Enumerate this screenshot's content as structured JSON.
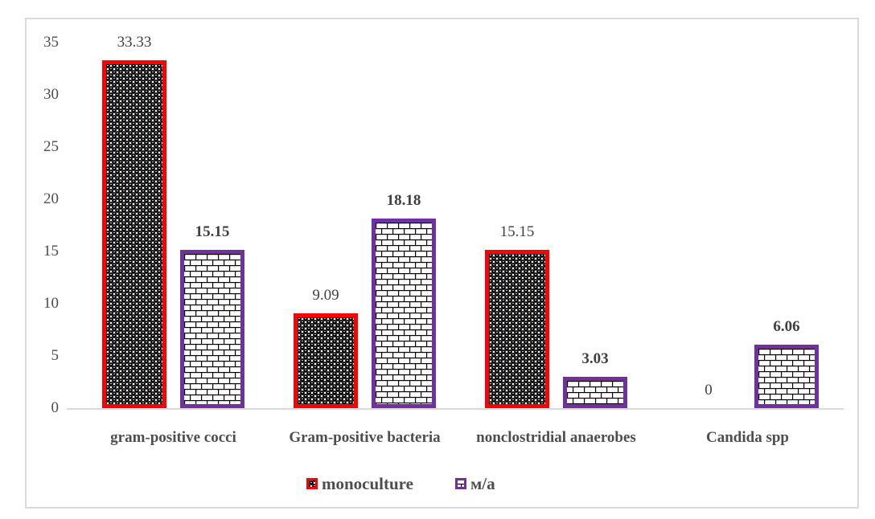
{
  "chart_data": {
    "type": "bar",
    "title": "",
    "xlabel": "",
    "ylabel": "",
    "categories": [
      "gram-positive cocci",
      "Gram-positive bacteria",
      "nonclostridial anaerobes",
      "Candida spp"
    ],
    "series": [
      {
        "id": "monoculture",
        "name": "monoculture",
        "color": "#ff0000",
        "pattern": "spheres",
        "values": [
          33.33,
          9.09,
          15.15,
          0
        ],
        "labels": [
          "33.33",
          "9.09",
          "15.15",
          "0"
        ],
        "label_bold": false
      },
      {
        "id": "m-a",
        "name": "м/a",
        "color": "#7030a0",
        "pattern": "bricks",
        "values": [
          15.15,
          18.18,
          3.03,
          6.06
        ],
        "labels": [
          "15.15",
          "18.18",
          "3.03",
          "6.06"
        ],
        "label_bold": true
      }
    ],
    "ylim": [
      0,
      35
    ],
    "yticks": [
      0,
      5,
      10,
      15,
      20,
      25,
      30,
      35
    ],
    "grid": false,
    "legend_position": "bottom"
  },
  "colors": {
    "text_data_label": "#3f3f3f",
    "text_axis": "#4d4d4d",
    "axis_line": "#d9d9d9",
    "frame_border": "#d9d9d9",
    "background": "#ffffff",
    "pattern_ink": "#000000",
    "series_monoculture": "#ff0000",
    "series_m_a": "#7030a0"
  }
}
